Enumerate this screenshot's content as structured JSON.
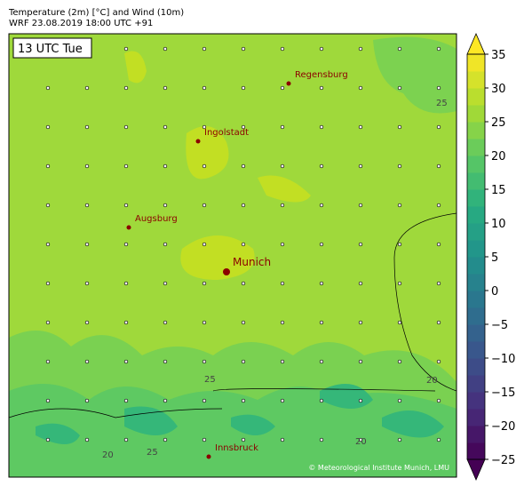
{
  "header": {
    "title": "Temperature (2m) [°C] and Wind (10m)",
    "subtitle": "WRF 23.08.2019 18:00 UTC +91"
  },
  "map": {
    "time_label": "13 UTC Tue",
    "cities": [
      {
        "name": "Regensburg"
      },
      {
        "name": "Ingolstadt"
      },
      {
        "name": "Augsburg"
      },
      {
        "name": "Munich"
      },
      {
        "name": "Innsbruck"
      }
    ],
    "contour_labels": [
      "25",
      "25",
      "20",
      "20",
      "25",
      "20"
    ],
    "copyright": "© Meteorological Institute Munich, LMU"
  },
  "colorbar": {
    "lim": [
      -25,
      35
    ],
    "ticks": [
      35,
      30,
      25,
      20,
      15,
      10,
      5,
      0,
      {
        "value": -5,
        "label": "−5"
      },
      {
        "value": -10,
        "label": "−10"
      },
      {
        "value": -15,
        "label": "−15"
      },
      {
        "value": -20,
        "label": "−20"
      },
      {
        "value": -25,
        "label": "−25"
      }
    ]
  }
}
